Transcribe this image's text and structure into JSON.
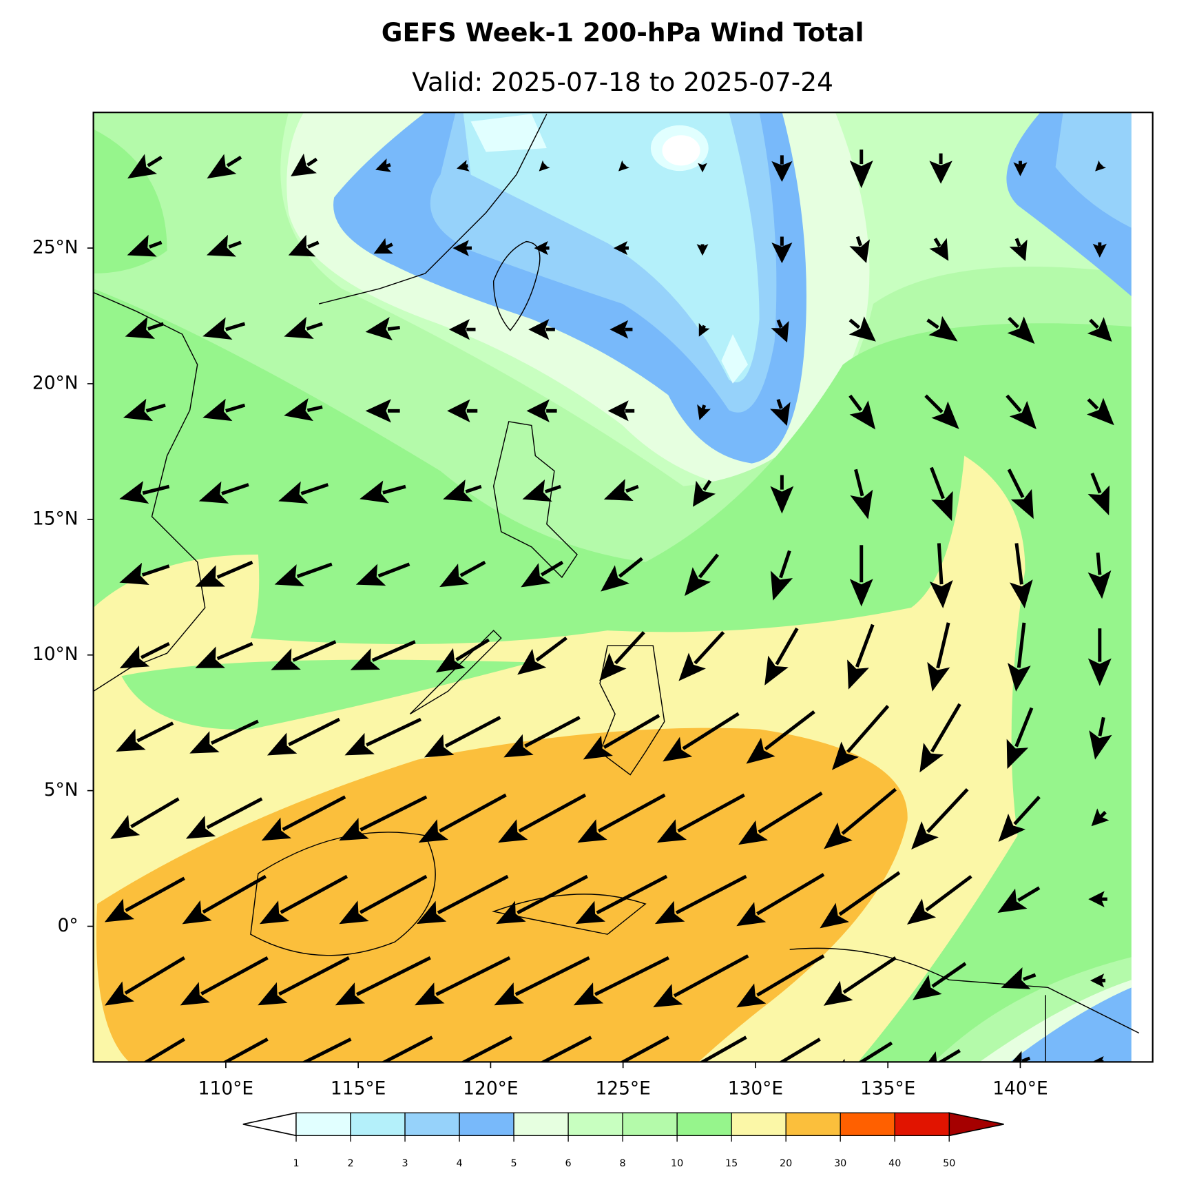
{
  "header": {
    "title": "GEFS Week-1 200-hPa Wind Total",
    "subtitle": "Valid: 2025-07-18 to 2025-07-24"
  },
  "map": {
    "xlim": [
      105,
      145
    ],
    "ylim": [
      -5,
      30
    ],
    "xticks": [
      {
        "value": 110,
        "label": "110°E"
      },
      {
        "value": 115,
        "label": "115°E"
      },
      {
        "value": 120,
        "label": "120°E"
      },
      {
        "value": 125,
        "label": "125°E"
      },
      {
        "value": 130,
        "label": "130°E"
      },
      {
        "value": 135,
        "label": "135°E"
      },
      {
        "value": 140,
        "label": "140°E"
      }
    ],
    "yticks": [
      {
        "value": 0,
        "label": "0°"
      },
      {
        "value": 5,
        "label": "5°N"
      },
      {
        "value": 10,
        "label": "10°N"
      },
      {
        "value": 15,
        "label": "15°N"
      },
      {
        "value": 20,
        "label": "20°N"
      },
      {
        "value": 25,
        "label": "25°N"
      }
    ]
  },
  "wind": {
    "lons": [
      107,
      110,
      113,
      116,
      119,
      122,
      125,
      128,
      131,
      134,
      137,
      140,
      143
    ],
    "lats": [
      28,
      25,
      22,
      19,
      16,
      13,
      10,
      7,
      4,
      1,
      -2,
      -5
    ],
    "u": [
      [
        -8,
        -8,
        -6,
        -3,
        -2,
        -1,
        -1,
        0,
        0,
        0,
        0,
        0,
        -1
      ],
      [
        -8,
        -8,
        -7,
        -4,
        -4,
        -3,
        -3,
        0,
        0,
        2,
        3,
        2,
        0
      ],
      [
        -9,
        -10,
        -9,
        -8,
        -6,
        -6,
        -5,
        -1,
        2,
        6,
        7,
        6,
        5
      ],
      [
        -10,
        -10,
        -9,
        -8,
        -7,
        -7,
        -6,
        -1,
        2,
        6,
        8,
        7,
        6
      ],
      [
        -12,
        -12,
        -12,
        -11,
        -9,
        -9,
        -8,
        -4,
        0,
        3,
        5,
        6,
        4
      ],
      [
        -12,
        -14,
        -14,
        -13,
        -11,
        -10,
        -10,
        -8,
        -4,
        0,
        1,
        2,
        1
      ],
      [
        -12,
        -14,
        -16,
        -16,
        -13,
        -12,
        -11,
        -11,
        -8,
        -6,
        -4,
        -2,
        0
      ],
      [
        -14,
        -17,
        -18,
        -19,
        -19,
        -19,
        -19,
        -19,
        -17,
        -14,
        -10,
        -6,
        -2
      ],
      [
        -17,
        -19,
        -21,
        -22,
        -22,
        -22,
        -22,
        -22,
        -21,
        -18,
        -14,
        -10,
        -3
      ],
      [
        -20,
        -21,
        -22,
        -22,
        -23,
        -23,
        -23,
        -23,
        -22,
        -20,
        -16,
        -10,
        -4
      ],
      [
        -20,
        -22,
        -23,
        -24,
        -24,
        -24,
        -24,
        -24,
        -22,
        -18,
        -13,
        -8,
        -3
      ],
      [
        -20,
        -22,
        -24,
        -25,
        -25,
        -25,
        -24,
        -23,
        -20,
        -16,
        -10,
        -5,
        -2
      ]
    ],
    "v": [
      [
        -5,
        -5,
        -4,
        -1,
        -0.5,
        -1,
        -1,
        -1,
        -6,
        -9,
        -7,
        -3,
        -1
      ],
      [
        -3,
        -3,
        -3,
        -2,
        0,
        0,
        0,
        -2,
        -6,
        -6,
        -5,
        -5,
        -3
      ],
      [
        -3,
        -3,
        -3,
        -1,
        0,
        0,
        0,
        -2,
        -5,
        -5,
        -5,
        -6,
        -5
      ],
      [
        -3,
        -3,
        -2,
        0,
        0,
        0,
        0,
        -3,
        -6,
        -8,
        -8,
        -8,
        -6
      ],
      [
        -3,
        -4,
        -4,
        -3,
        -3,
        -3,
        -3,
        -6,
        -9,
        -12,
        -13,
        -12,
        -10
      ],
      [
        -4,
        -6,
        -5,
        -5,
        -6,
        -6,
        -8,
        -10,
        -12,
        -15,
        -16,
        -16,
        -11
      ],
      [
        -6,
        -6,
        -7,
        -7,
        -8,
        -9,
        -12,
        -12,
        -14,
        -16,
        -17,
        -17,
        -14
      ],
      [
        -7,
        -8,
        -9,
        -9,
        -10,
        -10,
        -11,
        -12,
        -13,
        -16,
        -17,
        -15,
        -10
      ],
      [
        -10,
        -10,
        -11,
        -11,
        -12,
        -12,
        -12,
        -12,
        -13,
        -15,
        -15,
        -11,
        -3
      ],
      [
        -11,
        -12,
        -12,
        -12,
        -12,
        -12,
        -12,
        -12,
        -13,
        -14,
        -12,
        -6,
        0
      ],
      [
        -12,
        -12,
        -12,
        -12,
        -12,
        -12,
        -12,
        -13,
        -13,
        -12,
        -9,
        -3,
        0
      ],
      [
        -12,
        -12,
        -12,
        -13,
        -13,
        -13,
        -13,
        -13,
        -12,
        -10,
        -6,
        -2,
        0
      ]
    ]
  },
  "colorbar": {
    "levels": [
      1,
      2,
      3,
      4,
      5,
      6,
      8,
      10,
      15,
      20,
      30,
      40,
      50
    ],
    "colors": [
      "#e1ffff",
      "#b4f0fa",
      "#96d2fa",
      "#78b9fa",
      "#e6ffe0",
      "#c8ffc0",
      "#b4faaa",
      "#96f58c",
      "#fbf7a7",
      "#fbbf3c",
      "#ff6000",
      "#e11400"
    ],
    "under_color": "#ffffff",
    "over_color": "#a50000"
  }
}
